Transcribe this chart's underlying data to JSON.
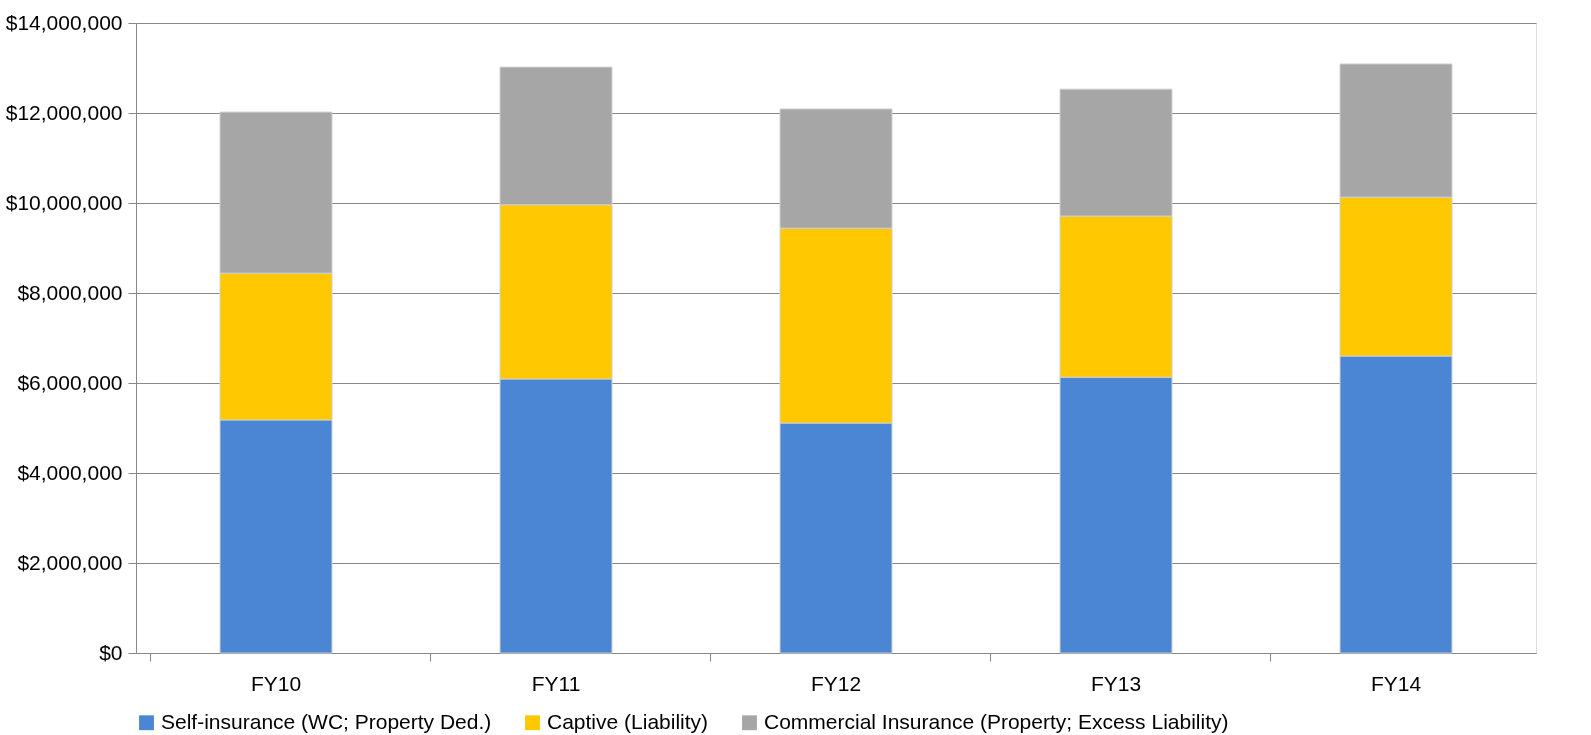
{
  "chart_data": {
    "type": "bar",
    "stacked": true,
    "categories": [
      "FY10",
      "FY11",
      "FY12",
      "FY13",
      "FY14"
    ],
    "series": [
      {
        "name": "Self-insurance (WC; Property Ded.)",
        "color": "#4a86d4",
        "values": [
          5180000,
          6090000,
          5110000,
          6130000,
          6600000
        ]
      },
      {
        "name": "Captive (Liability)",
        "color": "#ffc800",
        "values": [
          3260000,
          3870000,
          4330000,
          3580000,
          3530000
        ]
      },
      {
        "name": "Commercial Insurance (Property; Excess Liability)",
        "color": "#a6a6a6",
        "values": [
          3580000,
          3060000,
          2650000,
          2820000,
          2960000
        ]
      }
    ],
    "ylim": [
      0,
      14000000
    ],
    "yticks": [
      {
        "value": 0,
        "label": "$0"
      },
      {
        "value": 2000000,
        "label": "$2,000,000"
      },
      {
        "value": 4000000,
        "label": "$4,000,000"
      },
      {
        "value": 6000000,
        "label": "$6,000,000"
      },
      {
        "value": 8000000,
        "label": "$8,000,000"
      },
      {
        "value": 10000000,
        "label": "$10,000,000"
      },
      {
        "value": 12000000,
        "label": "$12,000,000"
      },
      {
        "value": 14000000,
        "label": "$14,000,000"
      }
    ],
    "grid": "y",
    "legend": "bottom"
  }
}
